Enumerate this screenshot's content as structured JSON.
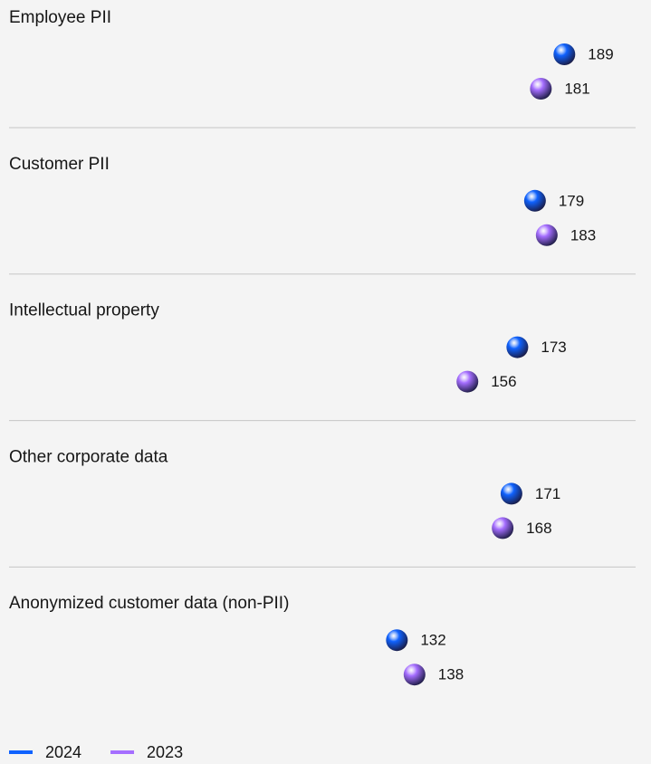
{
  "chart_data": {
    "type": "lollipop",
    "categories": [
      "Employee PII",
      "Customer PII",
      "Intellectual property",
      "Other corporate data",
      "Anonymized customer data (non-PII)"
    ],
    "series": [
      {
        "name": "2024",
        "color": "#0f62fe",
        "values": [
          189,
          179,
          173,
          171,
          132
        ]
      },
      {
        "name": "2023",
        "color": "#a56eff",
        "values": [
          181,
          183,
          156,
          168,
          138
        ]
      }
    ],
    "xlim": [
      0,
      200
    ]
  }
}
